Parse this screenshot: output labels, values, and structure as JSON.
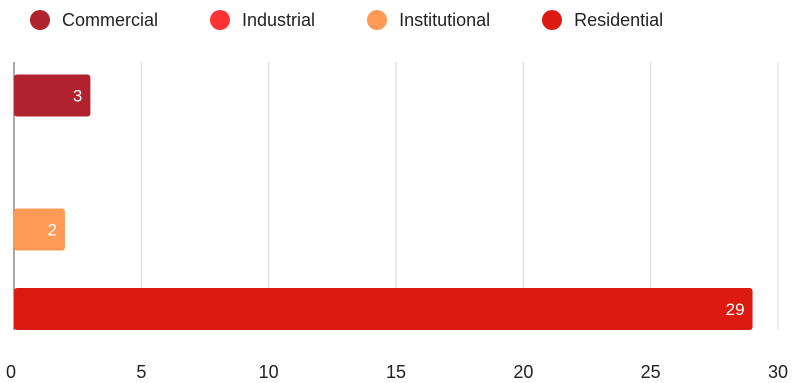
{
  "chart_data": {
    "type": "bar",
    "orientation": "horizontal",
    "categories": [
      "",
      "",
      "",
      ""
    ],
    "series": [
      {
        "name": "Commercial",
        "color": "#b0222e",
        "values": [
          3,
          0,
          0,
          0
        ]
      },
      {
        "name": "Industrial",
        "color": "#ff3333",
        "values": [
          0,
          0,
          0,
          0
        ]
      },
      {
        "name": "Institutional",
        "color": "#ff9955",
        "values": [
          0,
          0,
          2,
          0
        ]
      },
      {
        "name": "Residential",
        "color": "#dd1a11",
        "values": [
          0,
          0,
          0,
          29
        ]
      }
    ],
    "data_labels": [
      {
        "series": 0,
        "row": 0,
        "text": "3"
      },
      {
        "series": 2,
        "row": 2,
        "text": "2"
      },
      {
        "series": 3,
        "row": 3,
        "text": "29"
      }
    ],
    "xlim": [
      0,
      30
    ],
    "x_ticks": [
      "0",
      "5",
      "10",
      "15",
      "20",
      "25",
      "30"
    ],
    "legend": "top",
    "grid": "vertical",
    "title": "",
    "xlabel": "",
    "ylabel": ""
  }
}
